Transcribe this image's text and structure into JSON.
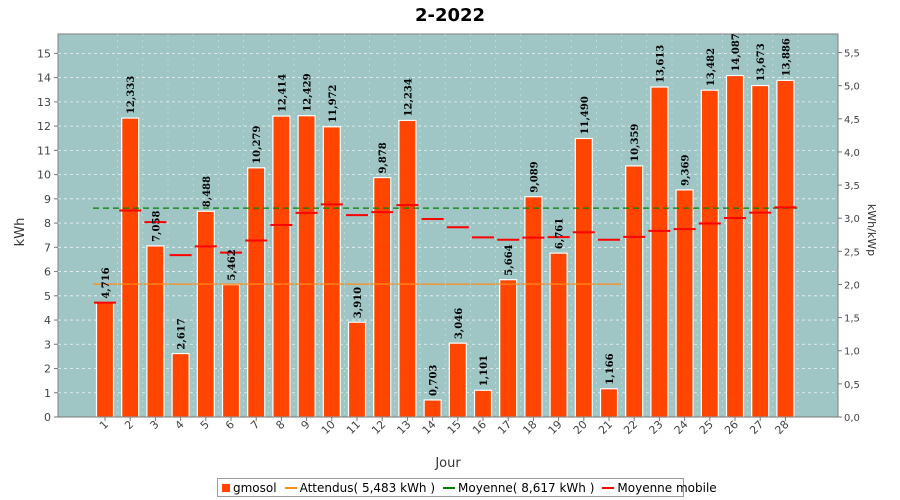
{
  "chart_data": {
    "type": "bar",
    "title": "2-2022",
    "xlabel": "Jour",
    "ylabel": "kWh",
    "y2label": "kWh/kWp",
    "categories": [
      "1",
      "2",
      "3",
      "4",
      "5",
      "6",
      "7",
      "8",
      "9",
      "10",
      "11",
      "12",
      "13",
      "14",
      "15",
      "16",
      "17",
      "18",
      "19",
      "20",
      "21",
      "22",
      "23",
      "24",
      "25",
      "26",
      "27",
      "28"
    ],
    "values": [
      4.716,
      12.333,
      7.058,
      2.617,
      8.488,
      5.462,
      10.279,
      12.414,
      12.429,
      11.972,
      3.91,
      9.878,
      12.234,
      0.703,
      3.046,
      1.101,
      5.664,
      9.089,
      6.761,
      11.49,
      1.166,
      10.359,
      13.613,
      9.369,
      13.482,
      14.087,
      13.673,
      13.886
    ],
    "value_labels": [
      "4,716",
      "12,333",
      "7,058",
      "2,617",
      "8,488",
      "5,462",
      "10,279",
      "12,414",
      "12,429",
      "11,972",
      "3,910",
      "9,878",
      "12,234",
      "0,703",
      "3,046",
      "1,101",
      "5,664",
      "9,089",
      "6,761",
      "11,490",
      "1,166",
      "10,359",
      "13,613",
      "9,369",
      "13,482",
      "14,087",
      "13,673",
      "13,886"
    ],
    "moyenne_mobile": [
      4.72,
      8.52,
      8.04,
      6.68,
      7.04,
      6.78,
      7.28,
      7.92,
      8.42,
      8.77,
      8.33,
      8.45,
      8.74,
      8.17,
      7.83,
      7.41,
      7.31,
      7.4,
      7.42,
      7.62,
      7.31,
      7.43,
      7.68,
      7.75,
      7.98,
      8.21,
      8.43,
      8.65
    ],
    "series": [
      {
        "name": "gmosol",
        "color": "#ff4500"
      },
      {
        "name": "Attendus( 5,483 kWh )",
        "color": "#ff8c1a",
        "value": 5.483
      },
      {
        "name": "Moyenne( 8,617 kWh )",
        "color": "#008000",
        "value": 8.617
      },
      {
        "name": "Moyenne mobile",
        "color": "#ff0000"
      }
    ],
    "ylim": [
      0,
      15.8
    ],
    "yticks": [
      "0",
      "1",
      "2",
      "3",
      "4",
      "5",
      "6",
      "7",
      "8",
      "9",
      "10",
      "11",
      "12",
      "13",
      "14",
      "15"
    ],
    "y2lim": [
      0,
      5.78
    ],
    "y2ticks": [
      "0,0",
      "0,5",
      "1,0",
      "1,5",
      "2,0",
      "2,5",
      "3,0",
      "3,5",
      "4,0",
      "4,5",
      "5,0",
      "5,5"
    ],
    "attendus_days": [
      1,
      2,
      3,
      4,
      5,
      6,
      7,
      8,
      9,
      10,
      11,
      12,
      13,
      14,
      15,
      16,
      17,
      18,
      19,
      20,
      21
    ],
    "grid": true,
    "plot_background": "#9fc5c5",
    "legend_position": "bottom"
  }
}
